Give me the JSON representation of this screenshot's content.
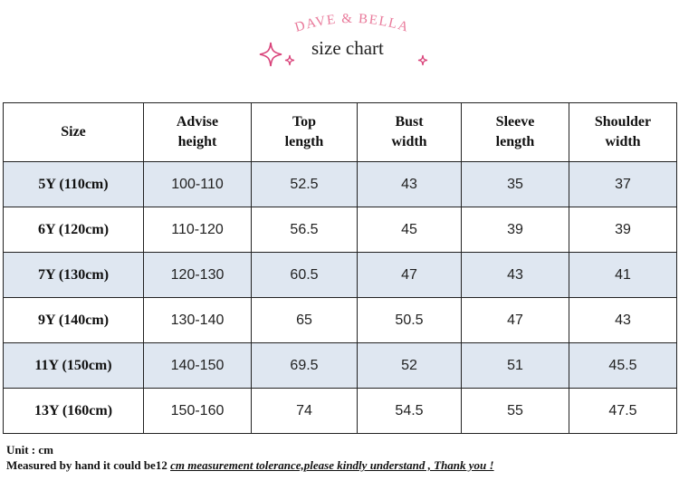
{
  "brand": {
    "name": "DAVE & BELLA",
    "color": "#e9799a"
  },
  "subtitle": "size chart",
  "table": {
    "headers": [
      {
        "line1": "Size",
        "line2": ""
      },
      {
        "line1": "Advise",
        "line2": "height"
      },
      {
        "line1": "Top",
        "line2": "length"
      },
      {
        "line1": "Bust",
        "line2": "width"
      },
      {
        "line1": "Sleeve",
        "line2": "length"
      },
      {
        "line1": "Shoulder",
        "line2": "width"
      }
    ],
    "rows": [
      [
        "5Y (110cm)",
        "100-110",
        "52.5",
        "43",
        "35",
        "37"
      ],
      [
        "6Y (120cm)",
        "110-120",
        "56.5",
        "45",
        "39",
        "39"
      ],
      [
        "7Y (130cm)",
        "120-130",
        "60.5",
        "47",
        "43",
        "41"
      ],
      [
        "9Y (140cm)",
        "130-140",
        "65",
        "50.5",
        "47",
        "43"
      ],
      [
        "11Y (150cm)",
        "140-150",
        "69.5",
        "52",
        "51",
        "45.5"
      ],
      [
        "13Y (160cm)",
        "150-160",
        "74",
        "54.5",
        "55",
        "47.5"
      ]
    ],
    "shade_color": "#dfe7f1"
  },
  "notes": {
    "unit": "Unit : cm",
    "measure_prefix": "Measured by hand it could be1",
    "measure_tail": "2 ",
    "measure_emphasis": "cm measurement tolerance,please kindly understand , Thank you !"
  }
}
